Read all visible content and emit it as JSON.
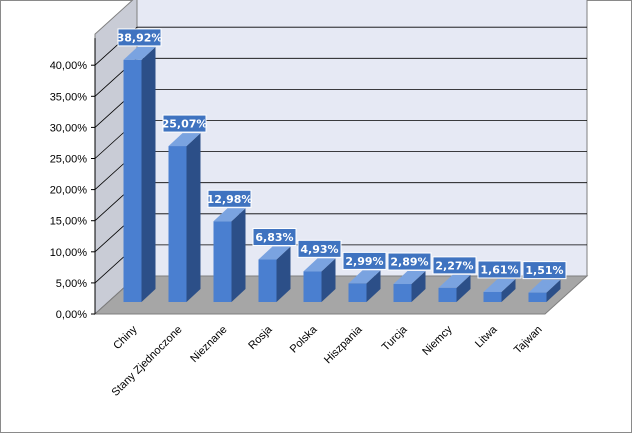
{
  "chart_data": {
    "type": "bar",
    "title": "",
    "xlabel": "",
    "ylabel": "",
    "ylim": [
      0,
      45
    ],
    "y_ticks": [
      "0,00%",
      "5,00%",
      "10,00%",
      "15,00%",
      "20,00%",
      "25,00%",
      "30,00%",
      "35,00%",
      "40,00%"
    ],
    "grid": true,
    "three_d": true,
    "categories": [
      "Chiny",
      "Stany Zjednoczone",
      "Nieznane",
      "Rosja",
      "Polska",
      "Hiszpania",
      "Turcja",
      "Niemcy",
      "Litwa",
      "Tajwan"
    ],
    "values": [
      38.92,
      25.07,
      12.98,
      6.83,
      4.93,
      2.99,
      2.89,
      2.27,
      1.61,
      1.51
    ],
    "data_labels": [
      "38,92%",
      "25,07%",
      "12,98%",
      "6,83%",
      "4,93%",
      "2,99%",
      "2,89%",
      "2,27%",
      "1,61%",
      "1,51%"
    ],
    "colors": {
      "bar_front": "#4a7fd0",
      "bar_side": "#2c4f88",
      "bar_top": "#7aa3e0",
      "label_bg": "#3f73c0",
      "wall": "#e6e9f4",
      "floor": "#a6a6a6",
      "grid": "#000000"
    }
  }
}
